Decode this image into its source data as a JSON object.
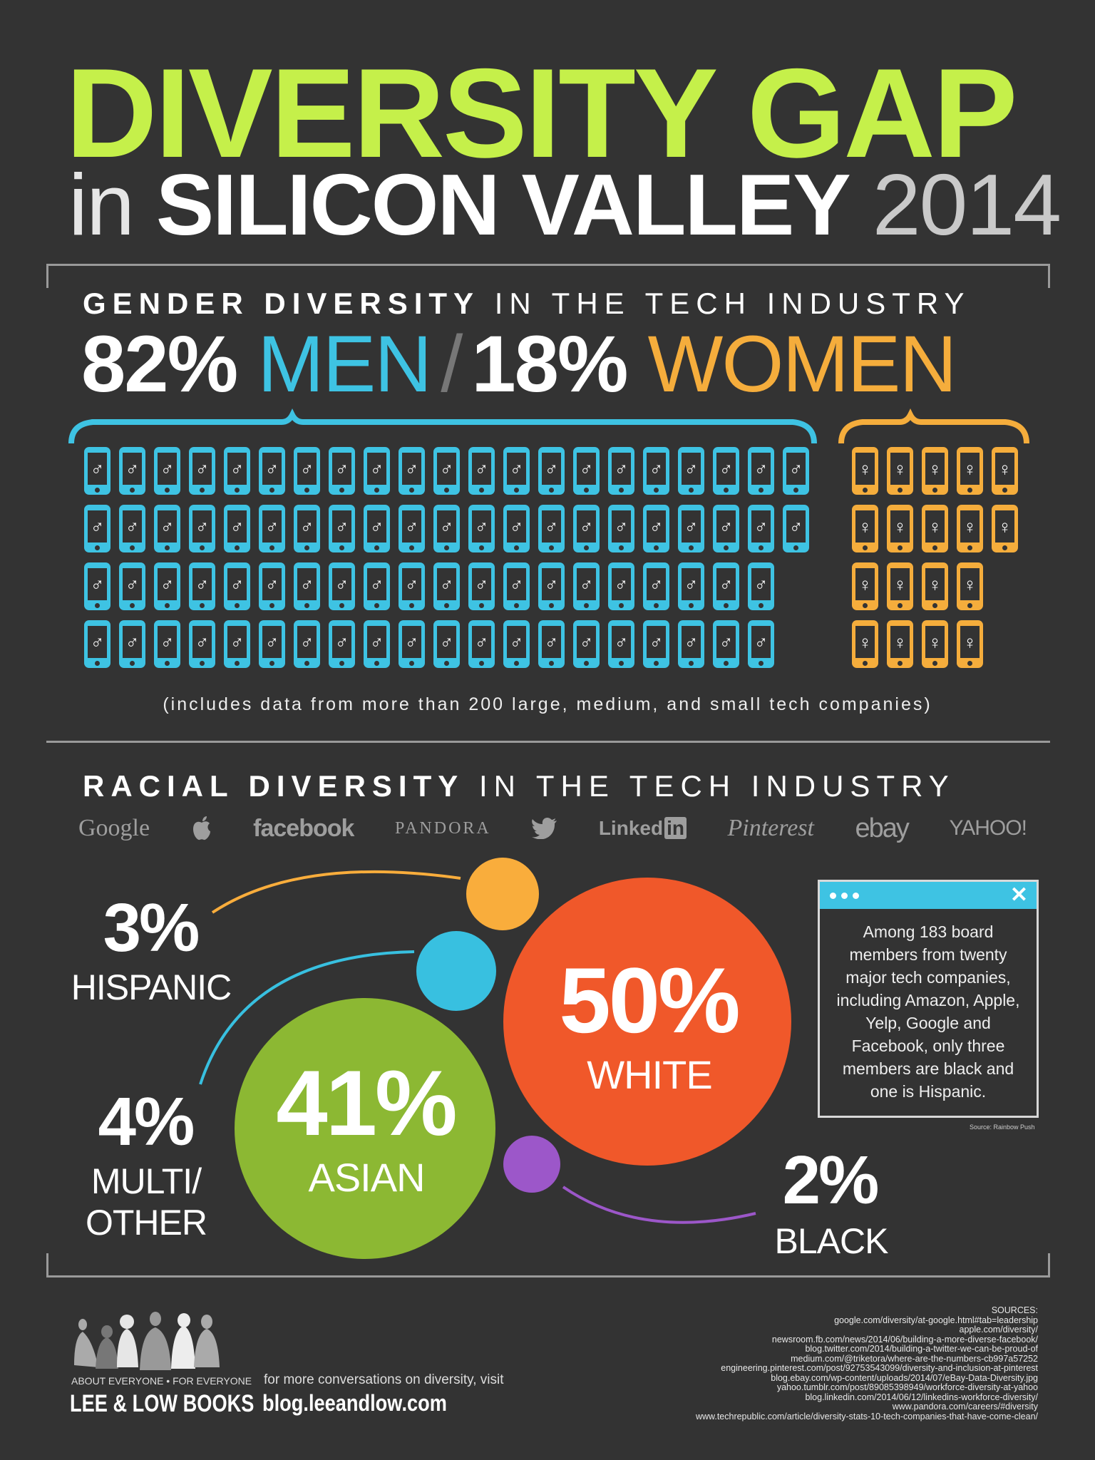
{
  "title": {
    "line1": "DIVERSITY GAP",
    "in": "in",
    "place": "SILICON VALLEY",
    "year": "2014"
  },
  "gender": {
    "heading_bold": "GENDER DIVERSITY",
    "heading_rest": "IN THE TECH INDUSTRY",
    "men_pct": "82%",
    "men_label": "MEN",
    "slash": "/",
    "women_pct": "18%",
    "women_label": "WOMEN",
    "men_rows": [
      21,
      21,
      20,
      20
    ],
    "women_rows": [
      5,
      5,
      4,
      4
    ],
    "men_symbol": "♂",
    "women_symbol": "♀",
    "caption": "(includes data from more than 200 large, medium, and small tech companies)"
  },
  "racial": {
    "heading_bold": "RACIAL DIVERSITY",
    "heading_rest": "IN THE TECH INDUSTRY",
    "logos": [
      "Google",
      "apple-icon",
      "facebook",
      "PANDORA",
      "twitter-icon",
      "LinkedIn",
      "Pinterest",
      "ebay",
      "YAHOO!"
    ],
    "logo_text": {
      "google": "Google",
      "facebook": "facebook",
      "pandora": "PANDORA",
      "linked": "Linked",
      "in": "in",
      "pinterest": "Pinterest",
      "ebay": "ebay",
      "yahoo": "YAHOO!"
    },
    "hispanic": {
      "pct": "3%",
      "label": "HISPANIC",
      "color": "#f9ad3c",
      "value": 3
    },
    "multi": {
      "pct": "4%",
      "label1": "MULTI/",
      "label2": "OTHER",
      "color": "#38c0e0",
      "value": 4
    },
    "asian": {
      "pct": "41%",
      "label": "ASIAN",
      "color": "#8cb833",
      "value": 41
    },
    "white": {
      "pct": "50%",
      "label": "WHITE",
      "color": "#f0582a",
      "value": 50
    },
    "black": {
      "pct": "2%",
      "label": "BLACK",
      "color": "#9c57c9",
      "value": 2
    }
  },
  "popup": {
    "text": "Among 183 board members from twenty major tech companies, including Amazon, Apple, Yelp, Google and Facebook, only three members are black and one is Hispanic.",
    "close": "✕",
    "source": "Source: Rainbow Push"
  },
  "footer": {
    "tagline": "ABOUT EVERYONE  •  FOR EVERYONE",
    "brand": "LEE & LOW BOOKS",
    "more": "for more conversations on diversity, visit",
    "blog": "blog.leeandlow.com",
    "sources_label": "SOURCES:",
    "sources": [
      "google.com/diversity/at-google.html#tab=leadership",
      "apple.com/diversity/",
      "newsroom.fb.com/news/2014/06/building-a-more-diverse-facebook/",
      "blog.twitter.com/2014/building-a-twitter-we-can-be-proud-of",
      "medium.com/@triketora/where-are-the-numbers-cb997a57252",
      "engineering.pinterest.com/post/92753543099/diversity-and-inclusion-at-pinterest",
      "blog.ebay.com/wp-content/uploads/2014/07/eBay-Data-Diversity.jpg",
      "yahoo.tumblr.com/post/89085398949/workforce-diversity-at-yahoo",
      "blog.linkedin.com/2014/06/12/linkedins-workforce-diversity/",
      "www.pandora.com/careers/#diversity",
      "www.techrepublic.com/article/diversity-stats-10-tech-companies-that-have-come-clean/"
    ]
  },
  "colors": {
    "background": "#333333",
    "title_green": "#c5f04a",
    "men_blue": "#3ec3e3",
    "women_orange": "#f5ad3c",
    "frame_gray": "#9a9a9a"
  }
}
